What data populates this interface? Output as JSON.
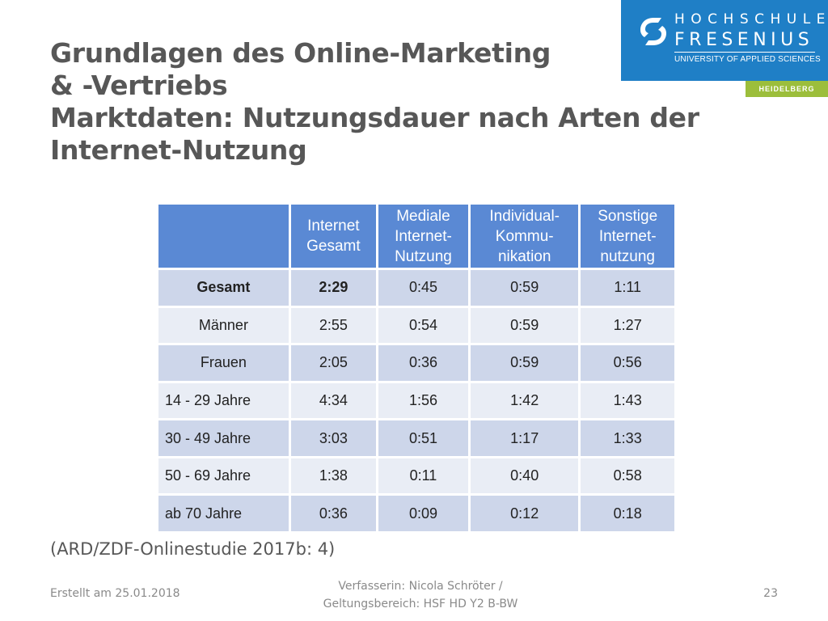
{
  "title": {
    "line1": "Grundlagen des Online-Marketing",
    "line2": "& -Vertriebs",
    "line3": "Marktdaten: Nutzungsdauer nach Arten der",
    "line4": "Internet-Nutzung"
  },
  "logo": {
    "line1": "HOCHSCHULE",
    "line2": "FRESENIUS",
    "line3": "UNIVERSITY OF APPLIED SCIENCES",
    "campus": "HEIDELBERG",
    "brand_color": "#1f7fc6",
    "campus_color": "#9cbe3b",
    "mark_icon": "fresenius-logo-icon"
  },
  "table": {
    "headers": [
      [
        "Internet",
        "Gesamt"
      ],
      [
        "Mediale",
        "Internet-",
        "Nutzung"
      ],
      [
        "Individual-",
        "Kommu-",
        "nikation"
      ],
      [
        "Sonstige",
        "Internet-",
        "nutzung"
      ]
    ],
    "rows": [
      {
        "label": "Gesamt",
        "values": [
          "2:29",
          "0:45",
          "0:59",
          "1:11"
        ]
      },
      {
        "label": "Männer",
        "values": [
          "2:55",
          "0:54",
          "0:59",
          "1:27"
        ]
      },
      {
        "label": "Frauen",
        "values": [
          "2:05",
          "0:36",
          "0:59",
          "0:56"
        ]
      },
      {
        "label": "14 - 29 Jahre",
        "values": [
          "4:34",
          "1:56",
          "1:42",
          "1:43"
        ]
      },
      {
        "label": "30 - 49 Jahre",
        "values": [
          "3:03",
          "0:51",
          "1:17",
          "1:33"
        ]
      },
      {
        "label": "50 - 69 Jahre",
        "values": [
          "1:38",
          "0:11",
          "0:40",
          "0:58"
        ]
      },
      {
        "label": "ab 70 Jahre",
        "values": [
          "0:36",
          "0:09",
          "0:12",
          "0:18"
        ]
      }
    ],
    "header_color": "#5a89d4"
  },
  "source": "(ARD/ZDF-Onlinestudie 2017b: 4)",
  "footer": {
    "created": "Erstellt am 25.01.2018",
    "author_line1": "Verfasserin: Nicola Schröter /",
    "author_line2": "Geltungsbereich:  HSF HD Y2 B-BW",
    "page": "23"
  }
}
